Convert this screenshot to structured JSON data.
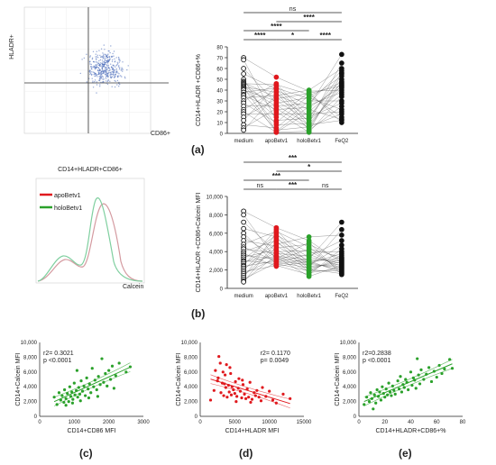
{
  "colors": {
    "medium": "#111111",
    "apoBetv1": "#e0191e",
    "holoBetv1": "#2ba12b",
    "FeQ2": "#111111",
    "flow_dot": "#3a5fb5",
    "red": "#e0191e",
    "green": "#2ba12b"
  },
  "panel_a": {
    "caption": "(a)",
    "flow": {
      "y_label": "HLADR+",
      "x_label": "CD86+"
    },
    "chart": {
      "type": "scatter",
      "ylabel": "CD14+HLADR +CD86+%",
      "categories": [
        "medium",
        "apoBetv1",
        "holoBetv1",
        "FeQ2"
      ],
      "yticks": [
        "0",
        "10",
        "20",
        "30",
        "40",
        "50",
        "60",
        "70",
        "80"
      ],
      "ylim": [
        0,
        80
      ],
      "brackets": [
        {
          "from": 0,
          "to": 3,
          "label": "ns"
        },
        {
          "from": 1,
          "to": 3,
          "label": "****"
        },
        {
          "from": 0,
          "to": 2,
          "label": "****"
        },
        {
          "from": 0,
          "to": 1,
          "label": "****"
        },
        {
          "from": 1,
          "to": 2,
          "label": "*"
        },
        {
          "from": 2,
          "to": 3,
          "label": "****"
        }
      ]
    }
  },
  "panel_b": {
    "caption": "(b)",
    "hist": {
      "title": "CD14+HLADR+CD86+",
      "legend": [
        "apoBetv1",
        "holoBetv1"
      ],
      "x_label": "Calcein"
    },
    "chart": {
      "type": "scatter",
      "ylabel": "CD14+HLADR +CD86+Calcein MFI",
      "categories": [
        "medium",
        "apoBetv1",
        "holoBetv1",
        "FeQ2"
      ],
      "yticks": [
        "0",
        "2,000",
        "4,000",
        "6,000",
        "8,000",
        "10,000"
      ],
      "ylim": [
        0,
        10000
      ],
      "brackets": [
        {
          "from": 0,
          "to": 3,
          "label": "***"
        },
        {
          "from": 1,
          "to": 3,
          "label": "*"
        },
        {
          "from": 0,
          "to": 2,
          "label": "***"
        },
        {
          "from": 0,
          "to": 1,
          "label": "ns"
        },
        {
          "from": 1,
          "to": 2,
          "label": "***"
        },
        {
          "from": 2,
          "to": 3,
          "label": "ns"
        }
      ]
    }
  },
  "panel_c": {
    "caption": "(c)",
    "xlabel": "CD14+CD86 MFI",
    "ylabel": "CD14+Calcein MFI",
    "stat1": "r2= 0.3021",
    "stat2": "p  <0.0001",
    "xticks": [
      "0",
      "1000",
      "2000",
      "3000"
    ],
    "yticks": [
      "0",
      "2,000",
      "4,000",
      "6,000",
      "8,000",
      "10,000"
    ]
  },
  "panel_d": {
    "caption": "(d)",
    "xlabel": "CD14+HLADR MFI",
    "ylabel": "CD14+Calcein MFI",
    "stat1": "r2= 0.1170",
    "stat2": "p= 0.0049",
    "xticks": [
      "0",
      "5000",
      "10000",
      "15000"
    ],
    "yticks": [
      "0",
      "2,000",
      "4,000",
      "6,000",
      "8,000",
      "10,000"
    ]
  },
  "panel_e": {
    "caption": "(e)",
    "xlabel": "CD14+HLADR+CD86+%",
    "ylabel": "CD14+Calcein MFI",
    "stat1": "r2=0.2838",
    "stat2": "p <0.0001",
    "xticks": [
      "0",
      "20",
      "40",
      "60",
      "80"
    ],
    "yticks": [
      "0",
      "2,000",
      "4,000",
      "6,000",
      "8,000",
      "10,000"
    ]
  },
  "chart_data": [
    {
      "type": "scatter",
      "panel": "a",
      "ylabel": "CD14+HLADR +CD86+%",
      "categories": [
        "medium",
        "apoBetv1",
        "holoBetv1",
        "FeQ2"
      ],
      "ylim": [
        0,
        80
      ],
      "series": [
        {
          "name": "medium",
          "values": [
            70,
            68,
            60,
            55,
            50,
            48,
            47,
            46,
            45,
            44,
            43,
            42,
            41,
            40,
            38,
            36,
            35,
            33,
            30,
            28,
            25,
            22,
            20,
            18,
            15,
            12,
            8,
            5,
            3
          ]
        },
        {
          "name": "apoBetv1",
          "values": [
            52,
            46,
            45,
            44,
            42,
            41,
            40,
            38,
            36,
            35,
            33,
            32,
            30,
            28,
            26,
            25,
            23,
            22,
            20,
            18,
            15,
            12,
            10,
            8,
            5,
            3,
            2,
            1,
            1
          ]
        },
        {
          "name": "holoBetv1",
          "values": [
            40,
            39,
            38,
            37,
            36,
            35,
            33,
            32,
            30,
            28,
            26,
            25,
            24,
            22,
            20,
            18,
            16,
            15,
            14,
            12,
            10,
            9,
            8,
            7,
            6,
            5,
            3,
            2,
            1
          ]
        },
        {
          "name": "FeQ2",
          "values": [
            73,
            65,
            60,
            58,
            56,
            55,
            53,
            50,
            48,
            47,
            46,
            45,
            44,
            43,
            42,
            40,
            38,
            36,
            34,
            30,
            28,
            25,
            22,
            20,
            18,
            15,
            13,
            12,
            10
          ]
        }
      ]
    },
    {
      "type": "scatter",
      "panel": "b",
      "ylabel": "CD14+HLADR +CD86+Calcein MFI",
      "categories": [
        "medium",
        "apoBetv1",
        "holoBetv1",
        "FeQ2"
      ],
      "ylim": [
        0,
        10000
      ],
      "series": [
        {
          "name": "medium",
          "values": [
            8400,
            8000,
            7200,
            6500,
            6000,
            5600,
            5200,
            4800,
            4500,
            4300,
            4000,
            3800,
            3600,
            3400,
            3200,
            3000,
            2900,
            2700,
            2500,
            2400,
            2200,
            2000,
            1800,
            1600,
            1400,
            1200,
            1000,
            800,
            700
          ]
        },
        {
          "name": "apoBetv1",
          "values": [
            6600,
            6400,
            6200,
            6000,
            5800,
            5600,
            5400,
            5200,
            5000,
            4800,
            4600,
            4400,
            4200,
            4000,
            3900,
            3800,
            3600,
            3500,
            3400,
            3300,
            3200,
            3100,
            3000,
            2900,
            2800,
            2700,
            2600,
            2500,
            2400
          ]
        },
        {
          "name": "holoBetv1",
          "values": [
            5600,
            5200,
            5000,
            4800,
            4500,
            4300,
            4100,
            3900,
            3700,
            3500,
            3400,
            3200,
            3100,
            3000,
            2900,
            2800,
            2700,
            2600,
            2500,
            2400,
            2300,
            2200,
            2100,
            2000,
            1900,
            1800,
            1700,
            1500,
            1300
          ]
        },
        {
          "name": "FeQ2",
          "values": [
            7200,
            6400,
            5800,
            5200,
            4700,
            4300,
            4000,
            3800,
            3600,
            3400,
            3300,
            3200,
            3100,
            3000,
            2900,
            2800,
            2700,
            2600,
            2500,
            2400,
            2300,
            2200,
            2100,
            2000,
            1900,
            1800,
            1700,
            1600,
            1500
          ]
        }
      ]
    },
    {
      "type": "scatter",
      "panel": "c",
      "xlabel": "CD14+CD86 MFI",
      "ylabel": "CD14+Calcein MFI",
      "xlim": [
        0,
        3000
      ],
      "ylim": [
        0,
        10000
      ],
      "x": [
        420,
        500,
        560,
        610,
        650,
        700,
        720,
        760,
        800,
        840,
        870,
        900,
        930,
        960,
        1000,
        1020,
        1060,
        1100,
        1130,
        1160,
        1200,
        1240,
        1280,
        1320,
        1360,
        1400,
        1440,
        1480,
        1520,
        1560,
        1600,
        1650,
        1700,
        1750,
        1800,
        1850,
        1900,
        1950,
        2000,
        2050,
        2100,
        2200,
        2300,
        2500,
        2620,
        760,
        950,
        1180,
        1420,
        1680,
        2150,
        1080
      ],
      "y": [
        2600,
        1600,
        3200,
        2200,
        2800,
        1900,
        3600,
        2400,
        3100,
        2000,
        4000,
        2700,
        3300,
        2300,
        4500,
        2900,
        3500,
        2600,
        3900,
        3000,
        4800,
        3400,
        4100,
        2800,
        5200,
        3700,
        4400,
        3200,
        6500,
        4000,
        4900,
        3600,
        5400,
        4300,
        7800,
        4600,
        5800,
        4100,
        6200,
        5000,
        6800,
        5500,
        7200,
        6000,
        6700,
        1500,
        1800,
        2100,
        2500,
        2700,
        3800,
        6200
      ]
    },
    {
      "type": "scatter",
      "panel": "d",
      "xlabel": "CD14+HLADR MFI",
      "ylabel": "CD14+Calcein MFI",
      "xlim": [
        0,
        15000
      ],
      "ylim": [
        0,
        10000
      ],
      "x": [
        1500,
        2000,
        2200,
        2500,
        2700,
        2900,
        3000,
        3200,
        3300,
        3400,
        3600,
        3700,
        3800,
        3900,
        4100,
        4200,
        4400,
        4500,
        4600,
        4800,
        5000,
        5100,
        5300,
        5500,
        5600,
        5800,
        6000,
        6200,
        6400,
        6600,
        6800,
        7000,
        7200,
        7500,
        7800,
        8000,
        8200,
        8500,
        8800,
        9000,
        9500,
        10000,
        10500,
        11000,
        12000,
        13000,
        3500,
        4300,
        5200,
        6100,
        7300,
        2600
      ],
      "y": [
        2200,
        3500,
        6200,
        4800,
        8100,
        7200,
        3200,
        4500,
        6000,
        2800,
        5600,
        3900,
        7000,
        2600,
        4200,
        3300,
        5800,
        2900,
        4000,
        3600,
        3100,
        4700,
        2700,
        3800,
        5100,
        3400,
        2500,
        4300,
        3000,
        2400,
        3700,
        2600,
        4600,
        2300,
        3200,
        2800,
        3500,
        2600,
        2100,
        3900,
        2700,
        3400,
        2200,
        1800,
        3000,
        2400,
        4400,
        6600,
        2000,
        4900,
        1900,
        5200
      ]
    },
    {
      "type": "scatter",
      "panel": "e",
      "xlabel": "CD14+HLADR+CD86+%",
      "ylabel": "CD14+Calcein MFI",
      "xlim": [
        0,
        80
      ],
      "ylim": [
        0,
        10000
      ],
      "x": [
        4,
        6,
        8,
        9,
        10,
        12,
        13,
        14,
        15,
        16,
        17,
        18,
        19,
        20,
        21,
        22,
        23,
        24,
        25,
        26,
        27,
        28,
        30,
        31,
        32,
        33,
        34,
        35,
        36,
        37,
        38,
        40,
        41,
        42,
        43,
        44,
        45,
        46,
        47,
        48,
        50,
        52,
        54,
        56,
        58,
        60,
        62,
        64,
        66,
        70,
        72,
        11
      ],
      "y": [
        1600,
        2600,
        2000,
        3200,
        2400,
        2900,
        1800,
        3600,
        2700,
        3300,
        2200,
        4000,
        3100,
        2600,
        3700,
        2900,
        4500,
        3300,
        2800,
        4100,
        3500,
        3000,
        4800,
        3700,
        5400,
        3300,
        4300,
        3900,
        5000,
        4600,
        3600,
        6000,
        4200,
        5200,
        4900,
        3800,
        7800,
        5600,
        4400,
        6300,
        5000,
        5700,
        6600,
        4700,
        6100,
        5300,
        6900,
        5800,
        6400,
        7700,
        6500,
        1000
      ]
    }
  ]
}
